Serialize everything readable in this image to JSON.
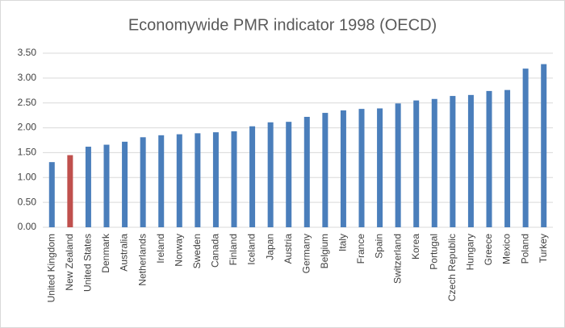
{
  "chart_data": {
    "type": "bar",
    "title": "Economywide PMR indicator 1998 (OECD)",
    "categories": [
      "United Kingdom",
      "New Zealand",
      "United States",
      "Denmark",
      "Australia",
      "Netherlands",
      "Ireland",
      "Norway",
      "Sweden",
      "Canada",
      "Finland",
      "Iceland",
      "Japan",
      "Austria",
      "Germany",
      "Belgium",
      "Italy",
      "France",
      "Spain",
      "Switzerland",
      "Korea",
      "Portugal",
      "Czech Republic",
      "Hungary",
      "Greece",
      "Mexico",
      "Poland",
      "Turkey"
    ],
    "values": [
      1.31,
      1.45,
      1.62,
      1.66,
      1.72,
      1.81,
      1.85,
      1.87,
      1.89,
      1.91,
      1.93,
      2.03,
      2.11,
      2.12,
      2.22,
      2.3,
      2.35,
      2.38,
      2.39,
      2.49,
      2.55,
      2.58,
      2.64,
      2.66,
      2.74,
      2.76,
      3.19,
      3.28
    ],
    "colors": [
      "#4a7ebb",
      "#c0504d",
      "#4a7ebb",
      "#4a7ebb",
      "#4a7ebb",
      "#4a7ebb",
      "#4a7ebb",
      "#4a7ebb",
      "#4a7ebb",
      "#4a7ebb",
      "#4a7ebb",
      "#4a7ebb",
      "#4a7ebb",
      "#4a7ebb",
      "#4a7ebb",
      "#4a7ebb",
      "#4a7ebb",
      "#4a7ebb",
      "#4a7ebb",
      "#4a7ebb",
      "#4a7ebb",
      "#4a7ebb",
      "#4a7ebb",
      "#4a7ebb",
      "#4a7ebb",
      "#4a7ebb",
      "#4a7ebb",
      "#4a7ebb"
    ],
    "ylim": [
      0,
      3.5
    ],
    "yticks": [
      {
        "value": 0,
        "label": "0.00"
      },
      {
        "value": 0.5,
        "label": "0.50"
      },
      {
        "value": 1,
        "label": "1.00"
      },
      {
        "value": 1.5,
        "label": "1.50"
      },
      {
        "value": 2,
        "label": "2.00"
      },
      {
        "value": 2.5,
        "label": "2.50"
      },
      {
        "value": 3,
        "label": "3.00"
      },
      {
        "value": 3.5,
        "label": "3.50"
      }
    ],
    "grid": true
  }
}
